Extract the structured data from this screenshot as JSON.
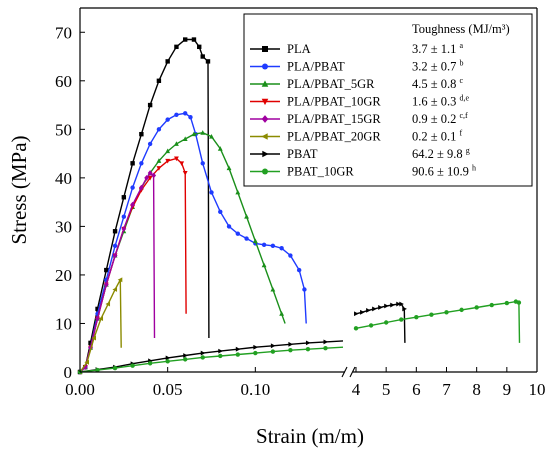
{
  "chart_data": {
    "type": "line",
    "xlabel": "Strain (m/m)",
    "ylabel": "Stress (MPa)",
    "ylim": [
      0,
      75
    ],
    "y_ticks": [
      "0",
      "10",
      "20",
      "30",
      "40",
      "50",
      "60",
      "70"
    ],
    "x_axis_segments": [
      {
        "range": [
          0,
          0.15
        ],
        "ticks": [
          "0.00",
          "0.05",
          "0.10"
        ]
      },
      {
        "range": [
          4,
          10
        ],
        "ticks": [
          "4",
          "5",
          "6",
          "7",
          "8",
          "9",
          "10"
        ]
      }
    ],
    "legend": {
      "placement": "top-right",
      "header": "Toughness (MJ/m³)"
    },
    "series": [
      {
        "name": "PLA",
        "toughness": "3.7 ± 1.1",
        "sup": "a",
        "color": "#000000",
        "marker": "square",
        "points": [
          [
            0,
            0
          ],
          [
            0.003,
            1
          ],
          [
            0.006,
            6
          ],
          [
            0.01,
            13
          ],
          [
            0.015,
            21
          ],
          [
            0.02,
            29
          ],
          [
            0.025,
            36
          ],
          [
            0.03,
            43
          ],
          [
            0.035,
            49
          ],
          [
            0.04,
            55
          ],
          [
            0.045,
            60
          ],
          [
            0.05,
            64
          ],
          [
            0.055,
            67
          ],
          [
            0.06,
            68.5
          ],
          [
            0.065,
            68.5
          ],
          [
            0.068,
            67
          ],
          [
            0.07,
            65
          ],
          [
            0.073,
            64
          ],
          [
            0.0735,
            7
          ]
        ]
      },
      {
        "name": "PLA/PBAT",
        "toughness": "3.2 ± 0.7",
        "sup": "b",
        "color": "#1f3bff",
        "marker": "circle",
        "points": [
          [
            0,
            0
          ],
          [
            0.003,
            1
          ],
          [
            0.006,
            5
          ],
          [
            0.01,
            12
          ],
          [
            0.015,
            19
          ],
          [
            0.02,
            26
          ],
          [
            0.025,
            32
          ],
          [
            0.03,
            38
          ],
          [
            0.035,
            43
          ],
          [
            0.04,
            47
          ],
          [
            0.045,
            50
          ],
          [
            0.05,
            52
          ],
          [
            0.055,
            53
          ],
          [
            0.06,
            53.3
          ],
          [
            0.063,
            52.5
          ],
          [
            0.066,
            49
          ],
          [
            0.07,
            43
          ],
          [
            0.075,
            37
          ],
          [
            0.08,
            33
          ],
          [
            0.085,
            30
          ],
          [
            0.09,
            28.5
          ],
          [
            0.095,
            27.5
          ],
          [
            0.1,
            26.5
          ],
          [
            0.105,
            26.2
          ],
          [
            0.11,
            26
          ],
          [
            0.115,
            25.5
          ],
          [
            0.12,
            24
          ],
          [
            0.125,
            21
          ],
          [
            0.128,
            17
          ],
          [
            0.129,
            10
          ]
        ]
      },
      {
        "name": "PLA/PBAT_5GR",
        "toughness": "4.5 ± 0.8",
        "sup": "c",
        "color": "#1a8f1a",
        "marker": "triangle-up",
        "points": [
          [
            0,
            0
          ],
          [
            0.003,
            1
          ],
          [
            0.006,
            5
          ],
          [
            0.01,
            11
          ],
          [
            0.015,
            18
          ],
          [
            0.02,
            24
          ],
          [
            0.025,
            29
          ],
          [
            0.03,
            34
          ],
          [
            0.035,
            38
          ],
          [
            0.04,
            41
          ],
          [
            0.045,
            43.5
          ],
          [
            0.05,
            45.5
          ],
          [
            0.055,
            47
          ],
          [
            0.06,
            48
          ],
          [
            0.065,
            49
          ],
          [
            0.07,
            49.3
          ],
          [
            0.075,
            48.5
          ],
          [
            0.08,
            46
          ],
          [
            0.085,
            42
          ],
          [
            0.09,
            37
          ],
          [
            0.095,
            32
          ],
          [
            0.1,
            27
          ],
          [
            0.105,
            22
          ],
          [
            0.11,
            17
          ],
          [
            0.115,
            12
          ],
          [
            0.117,
            10
          ]
        ]
      },
      {
        "name": "PLA/PBAT_10GR",
        "toughness": "1.6 ± 0.3",
        "sup": "d,e",
        "color": "#e00000",
        "marker": "triangle-down",
        "points": [
          [
            0,
            0
          ],
          [
            0.003,
            1
          ],
          [
            0.006,
            5
          ],
          [
            0.01,
            11
          ],
          [
            0.015,
            18
          ],
          [
            0.02,
            24
          ],
          [
            0.025,
            29.5
          ],
          [
            0.03,
            34
          ],
          [
            0.035,
            37.5
          ],
          [
            0.04,
            40
          ],
          [
            0.045,
            42
          ],
          [
            0.05,
            43.5
          ],
          [
            0.055,
            44
          ],
          [
            0.058,
            43
          ],
          [
            0.06,
            41
          ],
          [
            0.0605,
            12
          ]
        ]
      },
      {
        "name": "PLA/PBAT_15GR",
        "toughness": "0.9 ± 0.2",
        "sup": "c,f",
        "color": "#a000a0",
        "marker": "diamond",
        "points": [
          [
            0,
            0
          ],
          [
            0.003,
            1
          ],
          [
            0.006,
            5
          ],
          [
            0.01,
            11
          ],
          [
            0.015,
            18
          ],
          [
            0.02,
            24
          ],
          [
            0.025,
            29.5
          ],
          [
            0.03,
            34.5
          ],
          [
            0.035,
            38
          ],
          [
            0.038,
            40
          ],
          [
            0.04,
            41
          ],
          [
            0.042,
            40.5
          ],
          [
            0.0425,
            7
          ]
        ]
      },
      {
        "name": "PLA/PBAT_20GR",
        "toughness": "0.2 ± 0.1",
        "sup": "f",
        "color": "#8b8b00",
        "marker": "triangle-left",
        "points": [
          [
            0,
            0
          ],
          [
            0.004,
            2
          ],
          [
            0.008,
            7
          ],
          [
            0.012,
            11
          ],
          [
            0.016,
            14
          ],
          [
            0.02,
            17
          ],
          [
            0.023,
            19
          ],
          [
            0.0235,
            5
          ]
        ]
      },
      {
        "name": "PBAT",
        "toughness": "64.2 ± 9.8",
        "sup": "g",
        "color": "#000000",
        "marker": "triangle-right",
        "segment_points": [
          [
            [
              0,
              0
            ],
            [
              0.01,
              0.5
            ],
            [
              0.02,
              1
            ],
            [
              0.03,
              1.7
            ],
            [
              0.04,
              2.3
            ],
            [
              0.05,
              2.9
            ],
            [
              0.06,
              3.4
            ],
            [
              0.07,
              3.9
            ],
            [
              0.08,
              4.3
            ],
            [
              0.09,
              4.7
            ],
            [
              0.1,
              5.1
            ],
            [
              0.11,
              5.4
            ],
            [
              0.12,
              5.7
            ],
            [
              0.13,
              6
            ],
            [
              0.14,
              6.2
            ],
            [
              0.15,
              6.4
            ]
          ],
          [
            [
              4,
              12
            ],
            [
              4.2,
              12.3
            ],
            [
              4.4,
              12.7
            ],
            [
              4.6,
              13
            ],
            [
              4.8,
              13.3
            ],
            [
              5,
              13.6
            ],
            [
              5.2,
              13.8
            ],
            [
              5.4,
              14
            ],
            [
              5.5,
              14
            ],
            [
              5.6,
              13
            ],
            [
              5.62,
              6
            ]
          ]
        ]
      },
      {
        "name": "PBAT_10GR",
        "toughness": "90.6 ± 10.9",
        "sup": "h",
        "color": "#22a022",
        "marker": "circle",
        "segment_points": [
          [
            [
              0,
              0
            ],
            [
              0.01,
              0.4
            ],
            [
              0.02,
              0.8
            ],
            [
              0.03,
              1.3
            ],
            [
              0.04,
              1.8
            ],
            [
              0.05,
              2.2
            ],
            [
              0.06,
              2.6
            ],
            [
              0.07,
              3
            ],
            [
              0.08,
              3.3
            ],
            [
              0.09,
              3.6
            ],
            [
              0.1,
              3.9
            ],
            [
              0.11,
              4.2
            ],
            [
              0.12,
              4.5
            ],
            [
              0.13,
              4.7
            ],
            [
              0.14,
              4.9
            ],
            [
              0.15,
              5.1
            ]
          ],
          [
            [
              4,
              9
            ],
            [
              4.5,
              9.6
            ],
            [
              5,
              10.2
            ],
            [
              5.5,
              10.8
            ],
            [
              6,
              11.3
            ],
            [
              6.5,
              11.8
            ],
            [
              7,
              12.3
            ],
            [
              7.5,
              12.8
            ],
            [
              8,
              13.3
            ],
            [
              8.5,
              13.8
            ],
            [
              9,
              14.2
            ],
            [
              9.3,
              14.5
            ],
            [
              9.4,
              14.3
            ],
            [
              9.42,
              6
            ]
          ]
        ]
      }
    ]
  }
}
